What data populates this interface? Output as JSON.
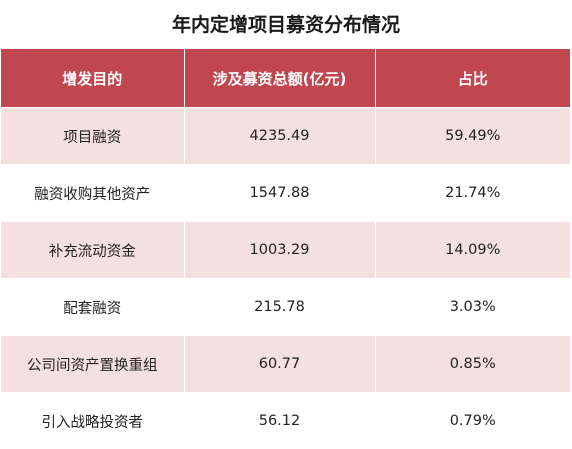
{
  "chart_data": {
    "type": "table",
    "title": "年内定增项目募资分布情况",
    "columns": [
      "增发目的",
      "涉及募资总额(亿元)",
      "占比"
    ],
    "rows": [
      [
        "项目融资",
        "4235.49",
        "59.49%"
      ],
      [
        "融资收购其他资产",
        "1547.88",
        "21.74%"
      ],
      [
        "补充流动资金",
        "1003.29",
        "14.09%"
      ],
      [
        "配套融资",
        "215.78",
        "3.03%"
      ],
      [
        "公司间资产置换重组",
        "60.77",
        "0.85%"
      ],
      [
        "引入战略投资者",
        "56.12",
        "0.79%"
      ]
    ]
  },
  "colors": {
    "header": "#c0464f",
    "band": "#f4dfe1"
  }
}
